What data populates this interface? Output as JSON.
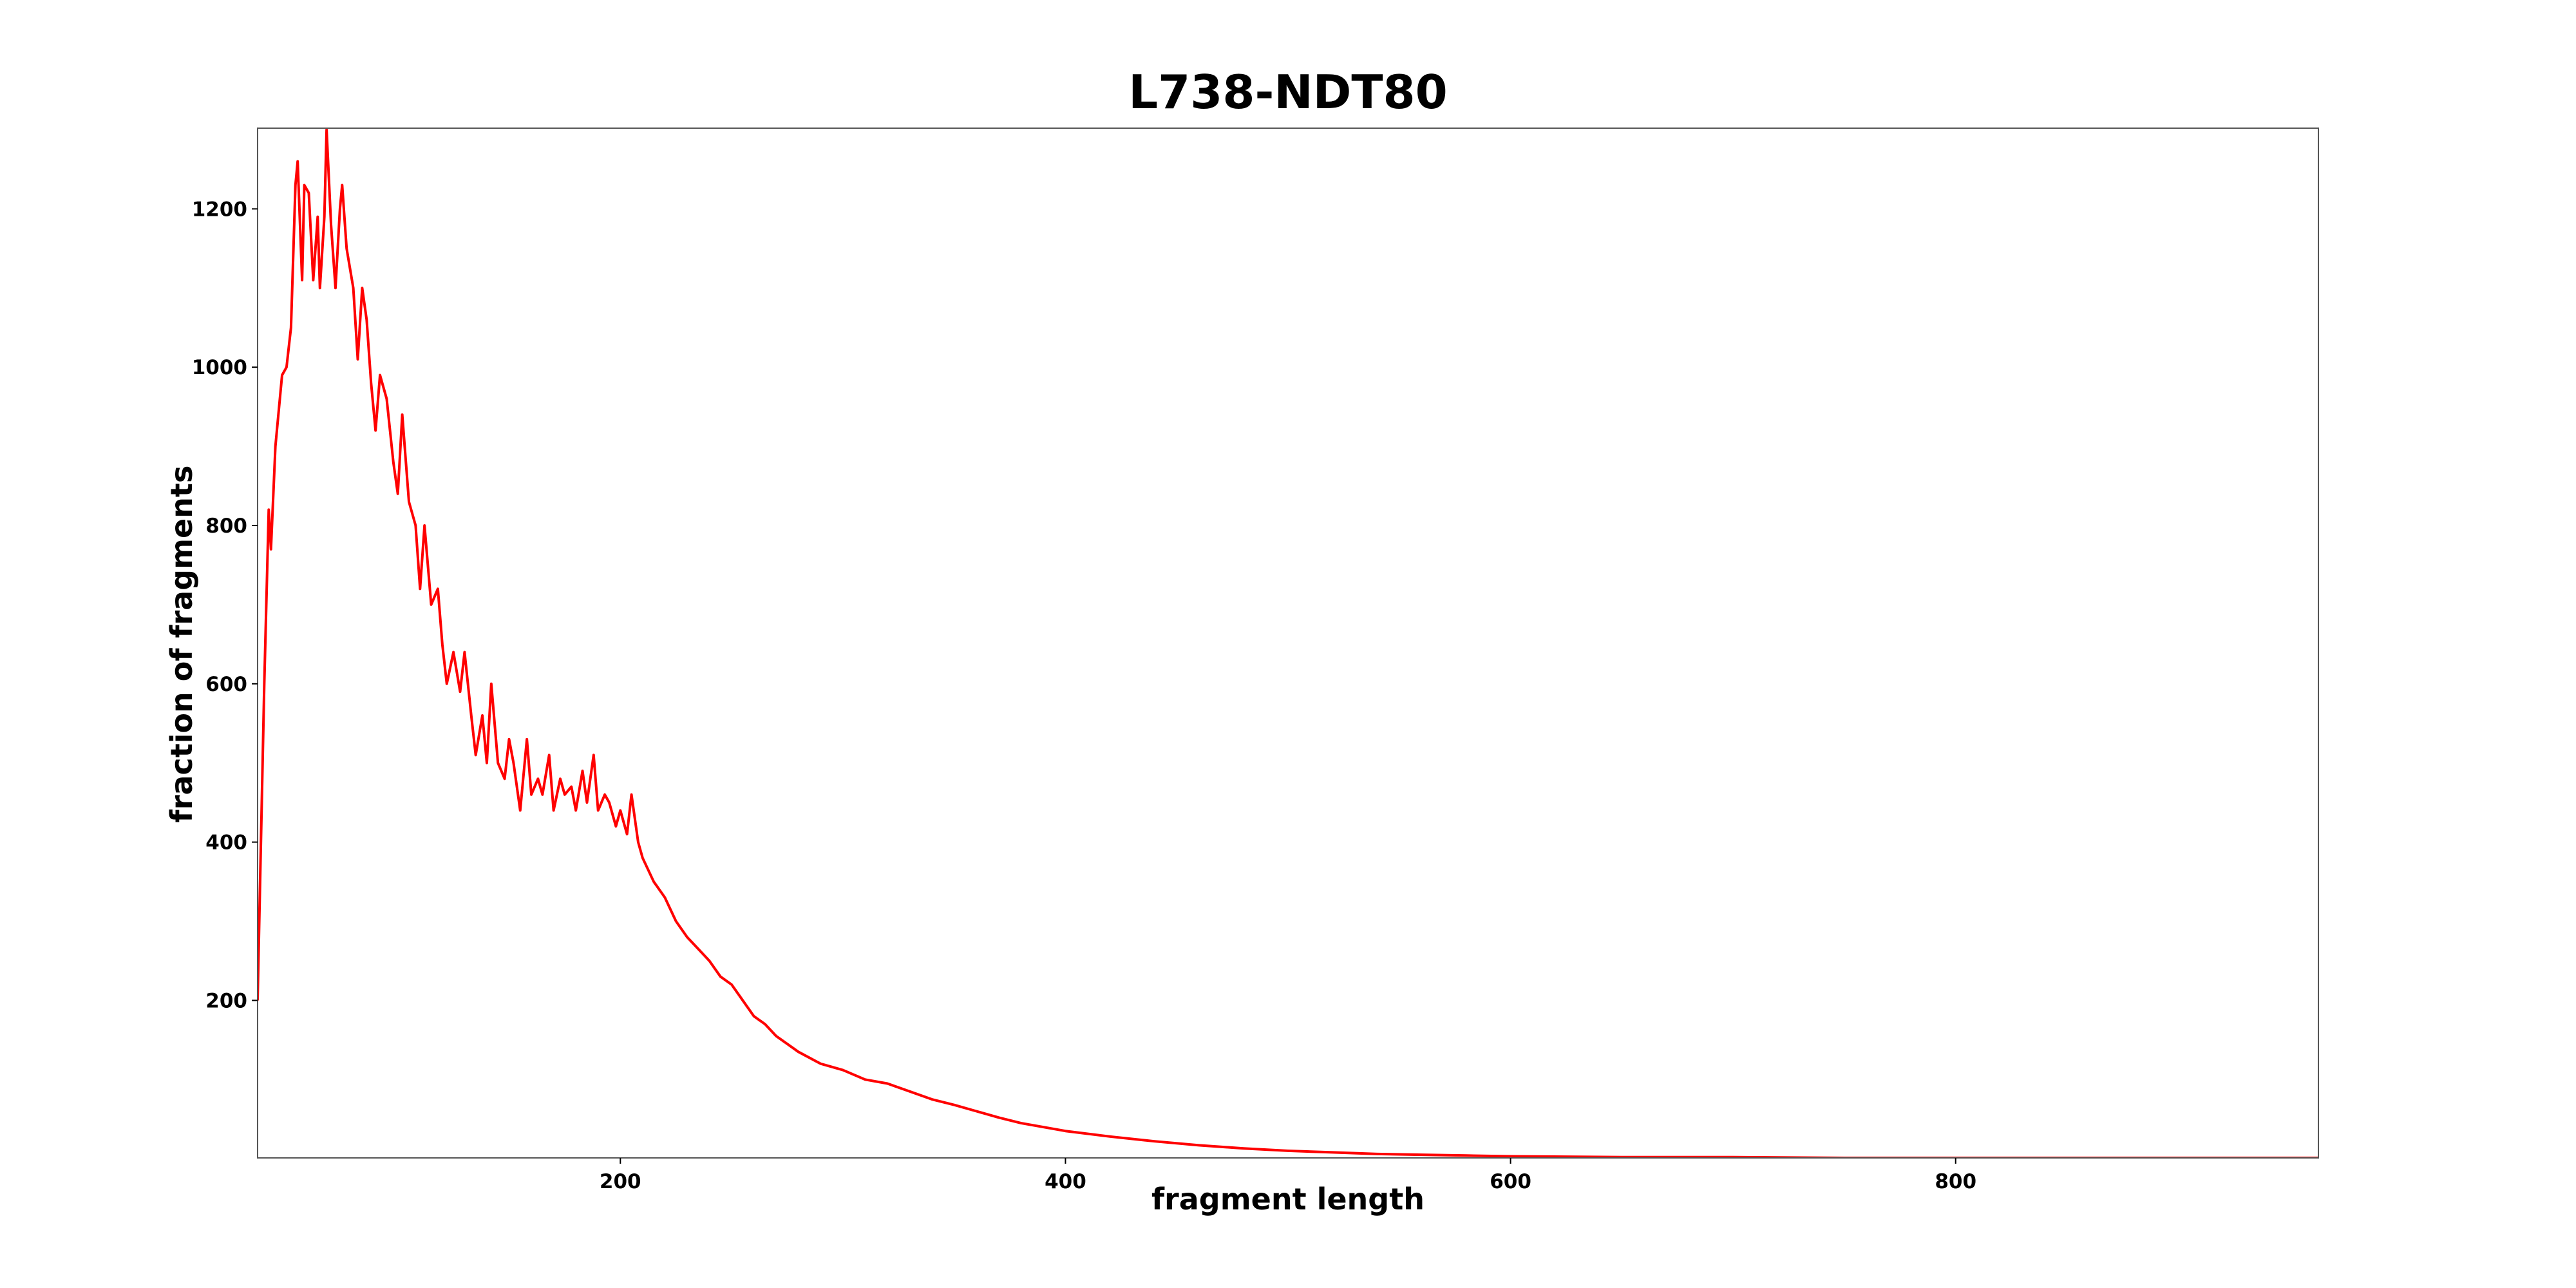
{
  "chart_data": {
    "type": "line",
    "title": "L738-NDT80",
    "x_label": "fragment length",
    "y_label": "fraction of fragments",
    "color": "#ff0000",
    "x": [
      37,
      40,
      42,
      43,
      45,
      48,
      50,
      52,
      54,
      55,
      57,
      58,
      60,
      62,
      64,
      65,
      67,
      68,
      70,
      72,
      74,
      75,
      77,
      80,
      82,
      84,
      86,
      88,
      90,
      92,
      95,
      98,
      100,
      102,
      105,
      108,
      110,
      112,
      115,
      118,
      120,
      122,
      125,
      128,
      130,
      133,
      135,
      138,
      140,
      142,
      145,
      148,
      150,
      152,
      155,
      158,
      160,
      163,
      165,
      168,
      170,
      173,
      175,
      178,
      180,
      183,
      185,
      188,
      190,
      193,
      195,
      198,
      200,
      203,
      205,
      208,
      210,
      215,
      220,
      225,
      230,
      235,
      240,
      245,
      250,
      255,
      260,
      265,
      270,
      275,
      280,
      290,
      300,
      310,
      320,
      330,
      340,
      350,
      360,
      370,
      380,
      390,
      400,
      420,
      440,
      460,
      480,
      500,
      520,
      540,
      560,
      580,
      600,
      650,
      700,
      750,
      800,
      850,
      900,
      963
    ],
    "values": [
      200,
      600,
      820,
      770,
      900,
      990,
      1000,
      1050,
      1230,
      1260,
      1110,
      1230,
      1220,
      1110,
      1190,
      1100,
      1190,
      1300,
      1180,
      1100,
      1200,
      1230,
      1150,
      1100,
      1010,
      1100,
      1060,
      980,
      920,
      990,
      960,
      880,
      840,
      940,
      830,
      800,
      720,
      800,
      700,
      720,
      650,
      600,
      640,
      590,
      640,
      560,
      510,
      560,
      500,
      600,
      500,
      480,
      530,
      500,
      440,
      530,
      460,
      480,
      460,
      510,
      440,
      480,
      460,
      470,
      440,
      490,
      450,
      510,
      440,
      460,
      450,
      420,
      440,
      410,
      460,
      400,
      380,
      350,
      330,
      300,
      280,
      265,
      250,
      230,
      220,
      200,
      180,
      170,
      155,
      145,
      135,
      120,
      112,
      100,
      95,
      85,
      75,
      68,
      60,
      52,
      45,
      40,
      35,
      28,
      22,
      17,
      13,
      10,
      8,
      6,
      5,
      4,
      3,
      2,
      2,
      1,
      1,
      1,
      1,
      1
    ],
    "xlim": [
      37,
      963
    ],
    "ylim": [
      1,
      1302
    ],
    "xticks": [
      200,
      400,
      600,
      800
    ],
    "yticks": [
      200,
      400,
      600,
      800,
      1000,
      1200
    ]
  }
}
